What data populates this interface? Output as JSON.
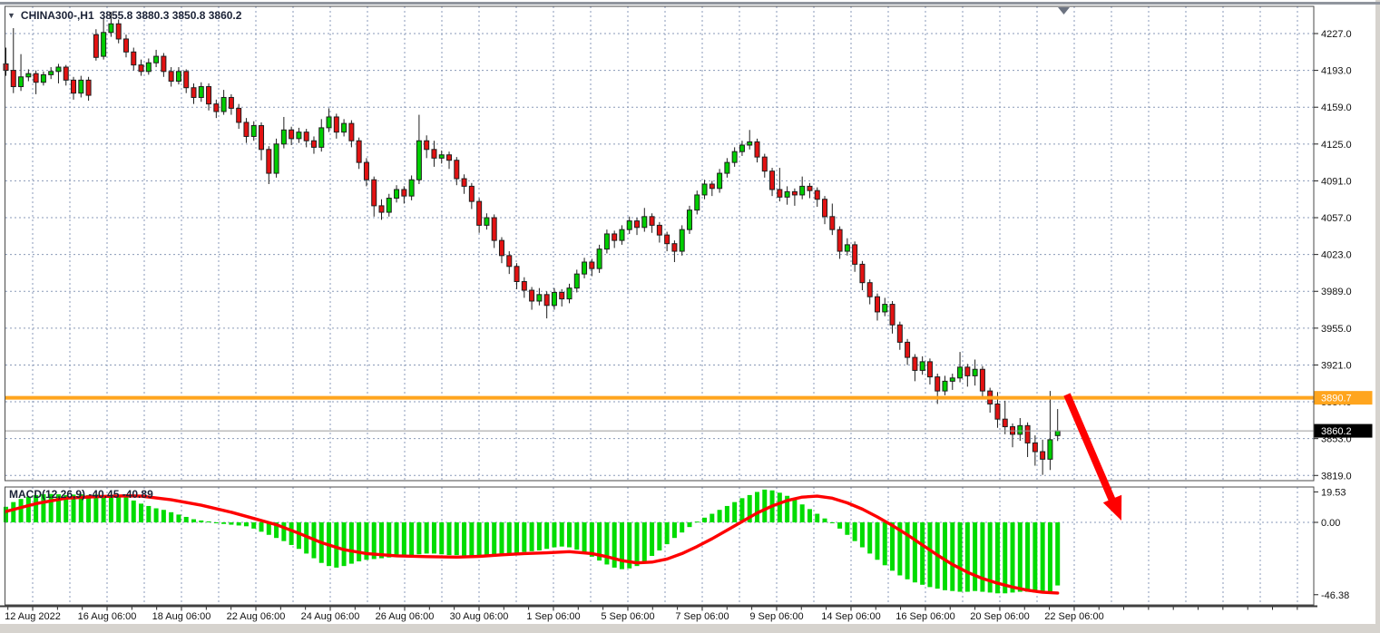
{
  "window": {
    "dropdown_glyph": "▼",
    "title_symbol": "CHINA300-,H1",
    "title_ohlc": "3855.8 3880.3 3850.8 3860.2"
  },
  "price_axis": {
    "gridline_prices": [
      4227.0,
      4193.0,
      4159.0,
      4125.0,
      4091.0,
      4057.0,
      4023.0,
      3989.0,
      3955.0,
      3921.0,
      3887.0,
      3853.0,
      3819.0
    ],
    "hline_badge": {
      "text": "3890.7",
      "color": "#FFA51E"
    },
    "last_price_badge": {
      "text": "3860.2",
      "color": "#000000"
    }
  },
  "time_axis": {
    "labels": [
      "12 Aug 2022",
      "16 Aug 06:00",
      "18 Aug 06:00",
      "22 Aug 06:00",
      "24 Aug 06:00",
      "26 Aug 06:00",
      "30 Aug 06:00",
      "1 Sep 06:00",
      "5 Sep 06:00",
      "7 Sep 06:00",
      "9 Sep 06:00",
      "14 Sep 06:00",
      "16 Sep 06:00",
      "20 Sep 06:00",
      "22 Sep 06:00"
    ]
  },
  "macd_panel": {
    "label": "MACD(12,26,9) -40.45 -40.89",
    "axis_labels": [
      "19.53",
      "0.00",
      "-46.38"
    ],
    "axis_values": [
      19.53,
      0.0,
      -46.38
    ]
  },
  "colors": {
    "bull": "#00CE00",
    "bear": "#E31212",
    "candle_outline": "#1e1e1e",
    "grid": "#8A9AB8",
    "hline": "#FFA51E",
    "last_price_line": "#9a9a9a",
    "macd_bar": "#00DC00",
    "signal_line": "#FE0000",
    "arrow": "#FF0000",
    "frame": "#4a4a4a",
    "axis_text": "#111111",
    "shift_marker": "#6b7280"
  },
  "chart_data": {
    "type": "candlestick",
    "symbol": "CHINA300-",
    "timeframe": "H1",
    "last_bar": {
      "open": 3855.8,
      "high": 3880.3,
      "low": 3850.8,
      "close": 3860.2
    },
    "horizontal_line_price": 3890.7,
    "last_price": 3860.2,
    "y_axis_range": [
      3819.0,
      4227.0
    ],
    "annotations": [
      {
        "type": "arrow-down-right",
        "note": "red arrow from horizontal line at 3890.7 pointing down-right into MACD zero area"
      }
    ],
    "candles_ohlc": [
      [
        4199,
        4214,
        4188,
        4193
      ],
      [
        4193,
        4232,
        4172,
        4178
      ],
      [
        4178,
        4208,
        4174,
        4187
      ],
      [
        4187,
        4194,
        4183,
        4190
      ],
      [
        4190,
        4193,
        4171,
        4182
      ],
      [
        4182,
        4192,
        4179,
        4189
      ],
      [
        4189,
        4196,
        4185,
        4192
      ],
      [
        4192,
        4199,
        4181,
        4196
      ],
      [
        4196,
        4198,
        4179,
        4184
      ],
      [
        4184,
        4187,
        4166,
        4172
      ],
      [
        4172,
        4188,
        4168,
        4184
      ],
      [
        4184,
        4187,
        4165,
        4170
      ],
      [
        4226,
        4231,
        4202,
        4205
      ],
      [
        4206,
        4241,
        4203,
        4228
      ],
      [
        4228,
        4247,
        4224,
        4236
      ],
      [
        4236,
        4240,
        4218,
        4222
      ],
      [
        4222,
        4226,
        4205,
        4210
      ],
      [
        4210,
        4214,
        4193,
        4198
      ],
      [
        4198,
        4203,
        4188,
        4192
      ],
      [
        4192,
        4204,
        4189,
        4200
      ],
      [
        4200,
        4212,
        4196,
        4206
      ],
      [
        4206,
        4209,
        4187,
        4192
      ],
      [
        4192,
        4196,
        4178,
        4183
      ],
      [
        4183,
        4196,
        4180,
        4192
      ],
      [
        4192,
        4194,
        4172,
        4177
      ],
      [
        4177,
        4181,
        4162,
        4168
      ],
      [
        4168,
        4182,
        4164,
        4178
      ],
      [
        4178,
        4181,
        4156,
        4162
      ],
      [
        4162,
        4166,
        4149,
        4155
      ],
      [
        4155,
        4175,
        4152,
        4168
      ],
      [
        4168,
        4171,
        4152,
        4158
      ],
      [
        4158,
        4162,
        4139,
        4145
      ],
      [
        4145,
        4149,
        4126,
        4132
      ],
      [
        4132,
        4146,
        4128,
        4142
      ],
      [
        4142,
        4145,
        4110,
        4120
      ],
      [
        4120,
        4123,
        4088,
        4098
      ],
      [
        4098,
        4130,
        4094,
        4125
      ],
      [
        4125,
        4150,
        4121,
        4138
      ],
      [
        4138,
        4141,
        4124,
        4130
      ],
      [
        4130,
        4140,
        4126,
        4136
      ],
      [
        4136,
        4139,
        4122,
        4128
      ],
      [
        4128,
        4132,
        4116,
        4122
      ],
      [
        4122,
        4148,
        4118,
        4140
      ],
      [
        4140,
        4158,
        4136,
        4150
      ],
      [
        4150,
        4153,
        4130,
        4136
      ],
      [
        4136,
        4148,
        4132,
        4144
      ],
      [
        4144,
        4147,
        4122,
        4128
      ],
      [
        4128,
        4131,
        4102,
        4108
      ],
      [
        4108,
        4112,
        4086,
        4092
      ],
      [
        4092,
        4095,
        4058,
        4068
      ],
      [
        4068,
        4074,
        4055,
        4062
      ],
      [
        4062,
        4079,
        4058,
        4075
      ],
      [
        4075,
        4087,
        4071,
        4083
      ],
      [
        4083,
        4086,
        4070,
        4077
      ],
      [
        4077,
        4096,
        4073,
        4092
      ],
      [
        4092,
        4152,
        4088,
        4128
      ],
      [
        4128,
        4133,
        4112,
        4120
      ],
      [
        4120,
        4128,
        4104,
        4112
      ],
      [
        4112,
        4119,
        4107,
        4115
      ],
      [
        4115,
        4118,
        4102,
        4110
      ],
      [
        4110,
        4113,
        4087,
        4093
      ],
      [
        4093,
        4097,
        4079,
        4086
      ],
      [
        4086,
        4089,
        4065,
        4072
      ],
      [
        4072,
        4075,
        4043,
        4050
      ],
      [
        4050,
        4061,
        4046,
        4057
      ],
      [
        4057,
        4060,
        4029,
        4036
      ],
      [
        4036,
        4039,
        4015,
        4022
      ],
      [
        4022,
        4026,
        4005,
        4012
      ],
      [
        4012,
        4015,
        3991,
        3998
      ],
      [
        3998,
        4002,
        3983,
        3990
      ],
      [
        3990,
        3993,
        3972,
        3980
      ],
      [
        3980,
        3992,
        3976,
        3986
      ],
      [
        3986,
        3989,
        3964,
        3976
      ],
      [
        3976,
        3992,
        3972,
        3988
      ],
      [
        3988,
        3991,
        3975,
        3982
      ],
      [
        3982,
        3996,
        3978,
        3992
      ],
      [
        3992,
        4009,
        3988,
        4005
      ],
      [
        4005,
        4020,
        4001,
        4016
      ],
      [
        4016,
        4019,
        4003,
        4010
      ],
      [
        4010,
        4032,
        4006,
        4028
      ],
      [
        4028,
        4046,
        4024,
        4042
      ],
      [
        4042,
        4045,
        4029,
        4036
      ],
      [
        4036,
        4050,
        4032,
        4046
      ],
      [
        4046,
        4058,
        4042,
        4054
      ],
      [
        4054,
        4057,
        4041,
        4048
      ],
      [
        4048,
        4066,
        4044,
        4058
      ],
      [
        4058,
        4061,
        4043,
        4050
      ],
      [
        4050,
        4053,
        4034,
        4041
      ],
      [
        4041,
        4044,
        4026,
        4033
      ],
      [
        4033,
        4036,
        4016,
        4026
      ],
      [
        4026,
        4050,
        4022,
        4046
      ],
      [
        4046,
        4068,
        4042,
        4064
      ],
      [
        4064,
        4082,
        4060,
        4078
      ],
      [
        4078,
        4092,
        4074,
        4088
      ],
      [
        4088,
        4091,
        4077,
        4084
      ],
      [
        4084,
        4102,
        4080,
        4098
      ],
      [
        4098,
        4112,
        4094,
        4108
      ],
      [
        4108,
        4122,
        4104,
        4118
      ],
      [
        4118,
        4128,
        4114,
        4124
      ],
      [
        4124,
        4138,
        4120,
        4127
      ],
      [
        4127,
        4130,
        4108,
        4113
      ],
      [
        4113,
        4116,
        4094,
        4100
      ],
      [
        4100,
        4103,
        4077,
        4083
      ],
      [
        4083,
        4103,
        4072,
        4076
      ],
      [
        4076,
        4086,
        4069,
        4081
      ],
      [
        4081,
        4084,
        4068,
        4078
      ],
      [
        4078,
        4095,
        4074,
        4086
      ],
      [
        4086,
        4089,
        4075,
        4082
      ],
      [
        4082,
        4085,
        4067,
        4074
      ],
      [
        4074,
        4077,
        4051,
        4058
      ],
      [
        4058,
        4070,
        4041,
        4046
      ],
      [
        4046,
        4049,
        4019,
        4026
      ],
      [
        4026,
        4038,
        4022,
        4032
      ],
      [
        4032,
        4035,
        4007,
        4014
      ],
      [
        4014,
        4017,
        3990,
        3997
      ],
      [
        3997,
        4000,
        3977,
        3984
      ],
      [
        3984,
        3987,
        3962,
        3970
      ],
      [
        3970,
        3983,
        3966,
        3977
      ],
      [
        3977,
        3980,
        3950,
        3958
      ],
      [
        3958,
        3961,
        3935,
        3942
      ],
      [
        3942,
        3945,
        3921,
        3928
      ],
      [
        3928,
        3931,
        3906,
        3916
      ],
      [
        3916,
        3929,
        3912,
        3924
      ],
      [
        3924,
        3927,
        3903,
        3910
      ],
      [
        3910,
        3913,
        3885,
        3897
      ],
      [
        3897,
        3911,
        3893,
        3906
      ],
      [
        3906,
        3913,
        3898,
        3909
      ],
      [
        3909,
        3933,
        3905,
        3919
      ],
      [
        3919,
        3922,
        3901,
        3911
      ],
      [
        3911,
        3926,
        3902,
        3917
      ],
      [
        3917,
        3920,
        3890,
        3897
      ],
      [
        3897,
        3900,
        3877,
        3885
      ],
      [
        3885,
        3896,
        3863,
        3871
      ],
      [
        3871,
        3888,
        3857,
        3864
      ],
      [
        3864,
        3867,
        3845,
        3857
      ],
      [
        3857,
        3872,
        3851,
        3865
      ],
      [
        3865,
        3868,
        3836,
        3849
      ],
      [
        3849,
        3856,
        3828,
        3841
      ],
      [
        3841,
        3852,
        3819.5,
        3834
      ],
      [
        3834,
        3897,
        3824,
        3852
      ],
      [
        3855.8,
        3880.3,
        3850.8,
        3860.2
      ]
    ],
    "macd_histogram": [
      10,
      13,
      15,
      16.5,
      17.5,
      18,
      18.2,
      18,
      17.5,
      17.8,
      18,
      17.5,
      17.8,
      16.5,
      17,
      17.5,
      16,
      14,
      12,
      10.5,
      9,
      8,
      6.5,
      5,
      3.5,
      2,
      1.2,
      0.6,
      -0.5,
      -1,
      -1.5,
      -2,
      -2.5,
      -4,
      -6,
      -8,
      -10,
      -12,
      -14.5,
      -17,
      -20,
      -23,
      -26,
      -28,
      -29,
      -28,
      -26.5,
      -25,
      -24,
      -23.5,
      -23,
      -22.5,
      -22,
      -21.5,
      -21,
      -20.5,
      -20,
      -20,
      -20.5,
      -21,
      -21,
      -21.5,
      -22,
      -22,
      -21.5,
      -21,
      -20.5,
      -20,
      -19.5,
      -19,
      -18.5,
      -18,
      -17,
      -16,
      -15.5,
      -16,
      -17.5,
      -19.5,
      -22,
      -24.5,
      -27,
      -29,
      -30,
      -29.5,
      -28,
      -25,
      -21.5,
      -18,
      -14,
      -10,
      -6.5,
      -3,
      0.5,
      3,
      5.5,
      8,
      10.5,
      13,
      15.5,
      17.5,
      19.5,
      21,
      20.5,
      19,
      17,
      14.5,
      11.5,
      8.5,
      5.5,
      2.5,
      -0.5,
      -4,
      -8,
      -12,
      -16,
      -20,
      -24,
      -27.5,
      -31,
      -34,
      -36.5,
      -38.5,
      -40,
      -41.5,
      -42.5,
      -43.5,
      -44,
      -44.5,
      -44.5,
      -44,
      -44.5,
      -45,
      -45.5,
      -45.5,
      -45,
      -44.5,
      -44.5,
      -45,
      -45.5,
      -45.5,
      -40.45
    ],
    "macd_signal_points": [
      [
        0,
        7
      ],
      [
        4,
        12
      ],
      [
        8,
        15.5
      ],
      [
        12,
        16.5
      ],
      [
        16,
        17
      ],
      [
        18,
        16.8
      ],
      [
        22,
        14.5
      ],
      [
        26,
        11
      ],
      [
        30,
        6.5
      ],
      [
        33,
        2.5
      ],
      [
        36,
        -1.5
      ],
      [
        39,
        -7
      ],
      [
        42,
        -13
      ],
      [
        45,
        -17.5
      ],
      [
        48,
        -20
      ],
      [
        52,
        -21.5
      ],
      [
        56,
        -22
      ],
      [
        60,
        -22.3
      ],
      [
        63,
        -21.8
      ],
      [
        66,
        -20.8
      ],
      [
        69,
        -20
      ],
      [
        72,
        -19.5
      ],
      [
        75,
        -18.8
      ],
      [
        78,
        -20
      ],
      [
        80,
        -22
      ],
      [
        82,
        -24.5
      ],
      [
        84,
        -26
      ],
      [
        86,
        -25.5
      ],
      [
        88,
        -23.5
      ],
      [
        90,
        -20
      ],
      [
        92,
        -15.5
      ],
      [
        94,
        -10.5
      ],
      [
        96,
        -5
      ],
      [
        98,
        0.5
      ],
      [
        100,
        6
      ],
      [
        102,
        10.5
      ],
      [
        104,
        14
      ],
      [
        106,
        16.2
      ],
      [
        108,
        16.8
      ],
      [
        110,
        15.5
      ],
      [
        112,
        12.5
      ],
      [
        114,
        8.5
      ],
      [
        116,
        3.5
      ],
      [
        118,
        -2
      ],
      [
        120,
        -8
      ],
      [
        122,
        -14.5
      ],
      [
        124,
        -21
      ],
      [
        126,
        -27
      ],
      [
        128,
        -32
      ],
      [
        130,
        -36
      ],
      [
        132,
        -39
      ],
      [
        134,
        -41.5
      ],
      [
        136,
        -43.5
      ],
      [
        138,
        -44.8
      ],
      [
        140,
        -45.3
      ]
    ]
  }
}
